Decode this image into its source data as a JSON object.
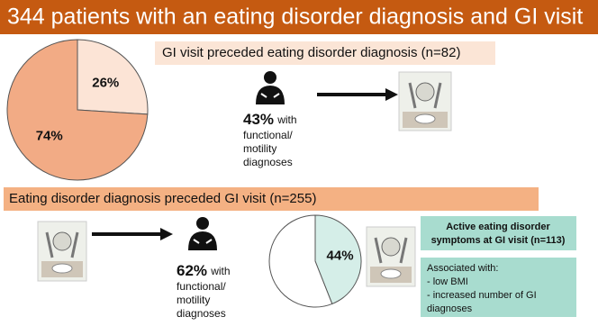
{
  "title": "344 patients with an eating disorder diagnosis and GI visit",
  "chart_data": [
    {
      "type": "pie",
      "values": [
        26,
        74
      ],
      "value_labels": [
        "26%",
        "74%"
      ],
      "colors": [
        "#fce4d6",
        "#f2ab85"
      ]
    },
    {
      "type": "pie",
      "values": [
        44,
        56
      ],
      "value_labels": [
        "44%",
        null
      ],
      "colors": [
        "#d5eee8",
        "#ffffff"
      ]
    }
  ],
  "section1": {
    "heading": "GI visit preceded eating disorder diagnosis (n=82)",
    "finding": {
      "percent": "43%",
      "lines": [
        "with",
        "functional/",
        "motility",
        "diagnoses"
      ]
    }
  },
  "section2": {
    "heading": "Eating disorder diagnosis preceded GI visit (n=255)",
    "finding": {
      "percent": "62%",
      "lines": [
        "with",
        "functional/",
        "motility",
        "diagnoses"
      ]
    },
    "box1": [
      "Active eating disorder",
      "symptoms at GI visit (n=113)"
    ],
    "box2": [
      "Associated with:",
      "- low BMI",
      "- increased number of GI",
      "diagnoses"
    ]
  }
}
